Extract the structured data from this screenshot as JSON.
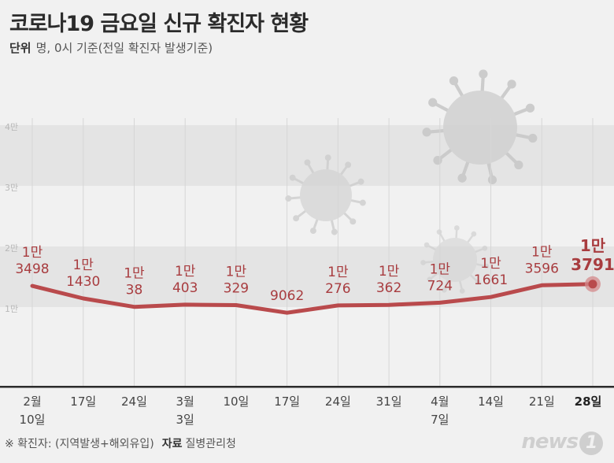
{
  "title": "코로나19 금요일 신규 확진자 현황",
  "unit_label": "단위",
  "unit_text": "명, 0시 기준(전일 확진자 발생기준)",
  "footnote_prefix": "※ 확진자: (지역발생+해외유입)",
  "source_label": "자료",
  "source_text": "질병관리청",
  "logo_text": "news",
  "logo_mark": "1",
  "colors": {
    "line": "#b94a4c",
    "label": "#a83c3f",
    "band": "#e4e4e4",
    "background": "#f1f1f1",
    "axis": "#333333"
  },
  "chart_data": {
    "type": "line",
    "title": "코로나19 금요일 신규 확진자 현황",
    "ylabel": "명",
    "ylim": [
      0,
      40000
    ],
    "yticks": [
      "1만",
      "2만",
      "3만",
      "4만"
    ],
    "grid": true,
    "categories": [
      [
        "2월",
        "10일"
      ],
      [
        "17일"
      ],
      [
        "24일"
      ],
      [
        "3월",
        "3일"
      ],
      [
        "10일"
      ],
      [
        "17일"
      ],
      [
        "24일"
      ],
      [
        "31일"
      ],
      [
        "4월",
        "7일"
      ],
      [
        "14일"
      ],
      [
        "21일"
      ],
      [
        "28일"
      ]
    ],
    "values": [
      13498,
      11430,
      10038,
      10403,
      10329,
      9062,
      10276,
      10362,
      10724,
      11661,
      13596,
      13791
    ],
    "value_labels": [
      [
        "1만",
        "3498"
      ],
      [
        "1만",
        "1430"
      ],
      [
        "1만",
        "38"
      ],
      [
        "1만",
        "403"
      ],
      [
        "1만",
        "329"
      ],
      [
        "9062"
      ],
      [
        "1만",
        "276"
      ],
      [
        "1만",
        "362"
      ],
      [
        "1만",
        "724"
      ],
      [
        "1만",
        "1661"
      ],
      [
        "1만",
        "3596"
      ],
      [
        "1만",
        "3791"
      ]
    ],
    "highlight_index": 11
  }
}
